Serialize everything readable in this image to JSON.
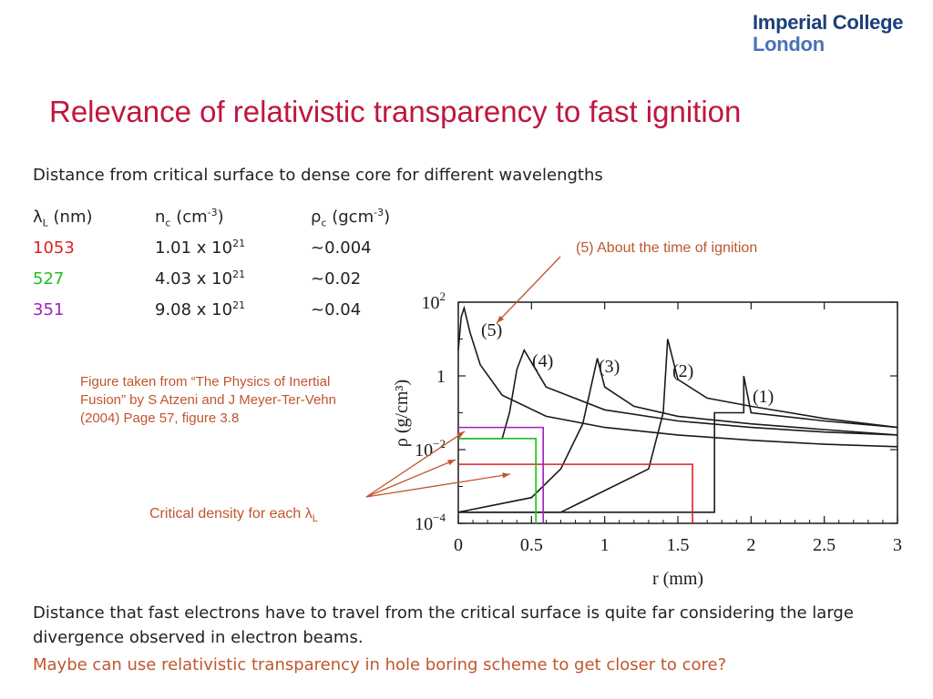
{
  "logo": {
    "line1": "Imperial College",
    "line2": "London"
  },
  "title": "Relevance of relativistic transparency to fast ignition",
  "subtitle": "Distance from critical surface to dense core for different wavelengths",
  "table": {
    "headers": {
      "lambda": "λ",
      "lambda_sub": "L",
      "lambda_unit": " (nm)",
      "nc": "n",
      "nc_sub": "c",
      "nc_unit": " (cm",
      "nc_exp": "-3",
      "nc_close": ")",
      "rho": "ρ",
      "rho_sub": "c",
      "rho_unit": " (gcm",
      "rho_exp": "-3",
      "rho_close": ")"
    },
    "rows": [
      {
        "lambda": "1053",
        "nc_base": "1.01 x 10",
        "nc_exp": "21",
        "rho": "~0.004",
        "color": "#e02020"
      },
      {
        "lambda": "527",
        "nc_base": "4.03 x 10",
        "nc_exp": "21",
        "rho": "~0.02",
        "color": "#1ec01e"
      },
      {
        "lambda": "351",
        "nc_base": "9.08 x 10",
        "nc_exp": "21",
        "rho": "~0.04",
        "color": "#a020c0"
      }
    ]
  },
  "caption": "Figure taken from “The Physics of Inertial Fusion” by S Atzeni and J Meyer-Ter-Vehn (2004) Page 57, figure 3.8",
  "annotations": {
    "ignition": "(5) About the time of ignition",
    "critical": "Critical density for each λ",
    "critical_sub": "L"
  },
  "figure": {
    "ylabel": "ρ (g/cm³)",
    "xlabel": "r (mm)",
    "y_ticks": [
      {
        "base": "10",
        "exp": "2"
      },
      {
        "base": "1",
        "exp": ""
      },
      {
        "base": "10",
        "exp": "−2"
      },
      {
        "base": "10",
        "exp": "−4"
      }
    ],
    "x_ticks": [
      "0",
      "0.5",
      "1",
      "1.5",
      "2",
      "2.5",
      "3"
    ],
    "curve_labels": [
      "(5)",
      "(4)",
      "(3)",
      "(2)",
      "(1)"
    ]
  },
  "chart_data": {
    "type": "line",
    "xlabel": "r (mm)",
    "ylabel": "ρ (g/cm³)",
    "xlim": [
      0,
      3
    ],
    "ylim": [
      0.0001,
      100
    ],
    "yscale": "log",
    "series": [
      {
        "name": "(1)",
        "x": [
          0,
          0.9,
          1.75,
          1.75,
          1.95,
          1.95,
          2.0,
          2.5,
          3.0
        ],
        "y": [
          0.0002,
          0.0002,
          0.0002,
          0.1,
          0.1,
          1.0,
          0.1,
          0.06,
          0.04
        ]
      },
      {
        "name": "(2)",
        "x": [
          0,
          0.7,
          1.3,
          1.4,
          1.43,
          1.5,
          1.7,
          2.0,
          2.5,
          3.0
        ],
        "y": [
          0.0002,
          0.0002,
          0.003,
          0.1,
          10,
          0.8,
          0.25,
          0.15,
          0.07,
          0.04
        ]
      },
      {
        "name": "(3)",
        "x": [
          0,
          0.5,
          0.7,
          0.85,
          0.95,
          1.0,
          1.2,
          1.5,
          2.0,
          2.5,
          3.0
        ],
        "y": [
          0.0002,
          0.0005,
          0.003,
          0.05,
          3,
          0.5,
          0.15,
          0.08,
          0.05,
          0.035,
          0.025
        ]
      },
      {
        "name": "(4)",
        "x": [
          0,
          0.3,
          0.35,
          0.4,
          0.45,
          0.6,
          1.0,
          1.5,
          2.0,
          2.5,
          3.0
        ],
        "y": [
          0.02,
          0.02,
          0.1,
          1.5,
          5,
          0.5,
          0.12,
          0.06,
          0.04,
          0.03,
          0.025
        ]
      },
      {
        "name": "(5)",
        "x": [
          0,
          0.02,
          0.04,
          0.08,
          0.15,
          0.3,
          0.6,
          1.0,
          1.5,
          2.0,
          2.5,
          3.0
        ],
        "y": [
          5,
          40,
          70,
          15,
          2,
          0.3,
          0.08,
          0.04,
          0.025,
          0.018,
          0.014,
          0.012
        ]
      }
    ],
    "critical_density": [
      {
        "lambda": "1053",
        "rho": 0.004,
        "r": 1.6,
        "color": "#e02020"
      },
      {
        "lambda": "527",
        "rho": 0.02,
        "r": 0.53,
        "color": "#1ec01e"
      },
      {
        "lambda": "351",
        "rho": 0.04,
        "r": 0.58,
        "color": "#a020c0"
      }
    ]
  }
}
